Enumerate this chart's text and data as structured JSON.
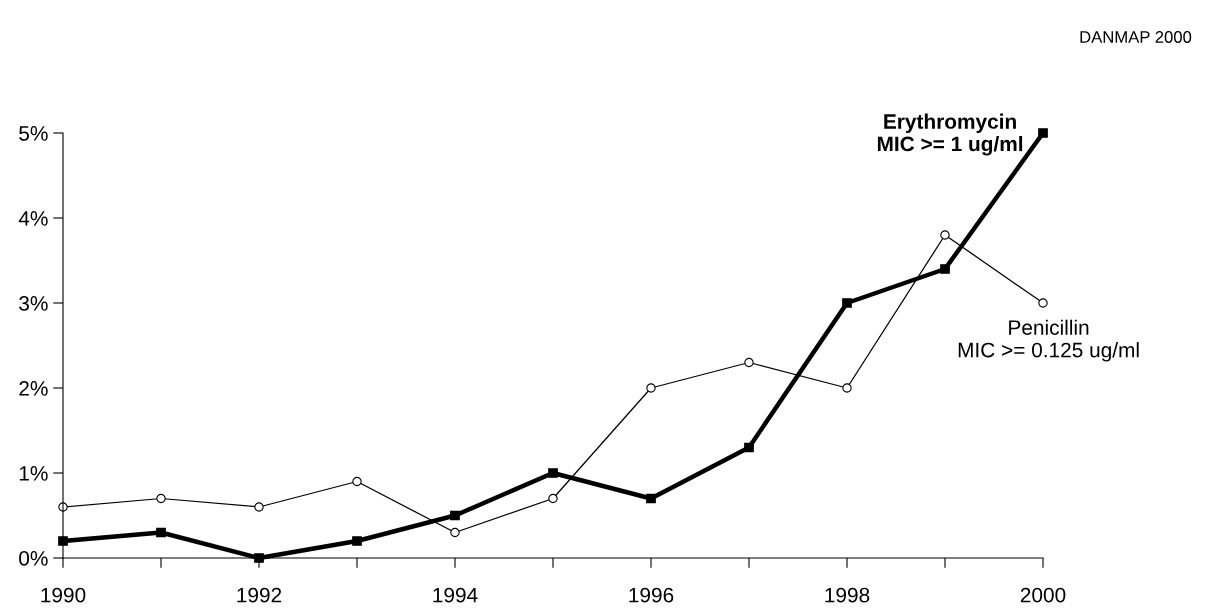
{
  "chart_data": {
    "type": "line",
    "x": [
      1990,
      1991,
      1992,
      1993,
      1994,
      1995,
      1996,
      1997,
      1998,
      1999,
      2000
    ],
    "series": [
      {
        "name": "Erythromycin\nMIC >= 1 ug/ml",
        "color": "#000000",
        "marker": "square",
        "values": [
          0.2,
          0.3,
          0.0,
          0.2,
          0.5,
          1.0,
          0.7,
          1.3,
          3.0,
          3.4,
          5.0
        ]
      },
      {
        "name": "Penicillin\nMIC >= 0.125 ug/ml",
        "color": "#000000",
        "marker": "circle",
        "values": [
          0.6,
          0.7,
          0.6,
          0.9,
          0.3,
          0.7,
          2.0,
          2.3,
          2.0,
          3.8,
          3.0
        ]
      }
    ],
    "xlim": [
      1990,
      2000
    ],
    "xticks": [
      1990,
      {
        "value": 1991,
        "label": null
      },
      1992,
      {
        "value": 1993,
        "label": null
      },
      1994,
      {
        "value": 1995,
        "label": null
      },
      1996,
      {
        "value": 1997,
        "label": null
      },
      1998,
      {
        "value": 1999,
        "label": null
      },
      2000
    ],
    "ylim": [
      0,
      5
    ],
    "yticks": [
      {
        "value": 0,
        "label": "0%"
      },
      {
        "value": 1,
        "label": "1%"
      },
      {
        "value": 2,
        "label": "2%"
      },
      {
        "value": 3,
        "label": "3%"
      },
      {
        "value": 4,
        "label": "4%"
      },
      {
        "value": 5,
        "label": "5%"
      }
    ],
    "grid": false,
    "legend": false,
    "line_style": "solid",
    "annotations": [
      "DANMAP 2000"
    ]
  }
}
